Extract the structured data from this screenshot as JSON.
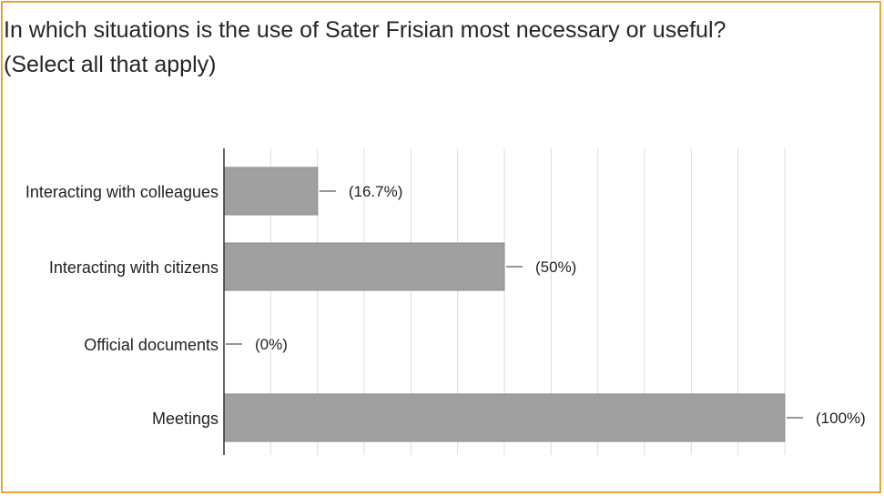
{
  "title_line1": "In which situations is the use of Sater Frisian most necessary or useful?",
  "title_line2": "(Select all that apply)",
  "colors": {
    "border": "#e8a33a",
    "bar": "#a0a0a0",
    "bar_stroke": "#8a8a8a",
    "grid": "#dcdcdc",
    "axis": "#333333",
    "text": "#222222"
  },
  "chart_data": {
    "type": "bar",
    "orientation": "horizontal",
    "categories": [
      "Interacting with colleagues",
      "Interacting with citizens",
      "Official documents",
      "Meetings"
    ],
    "values": [
      16.7,
      50,
      0,
      100
    ],
    "value_labels": [
      "(16.7%)",
      "(50%)",
      "(0%)",
      "(100%)"
    ],
    "xlim": [
      0,
      100
    ],
    "grid": true,
    "legend": "none"
  }
}
